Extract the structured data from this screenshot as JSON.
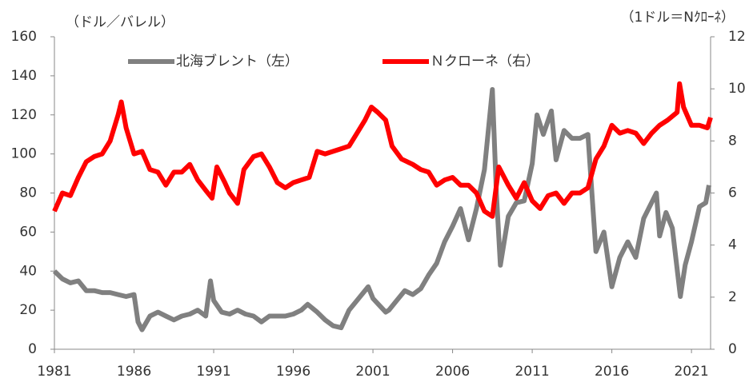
{
  "chart_data": {
    "type": "line",
    "y_label": "（ドル／バレル）",
    "y2_label": "（1ドル＝Nｸﾛｰﾈ）",
    "xlim": [
      1981,
      2022.2
    ],
    "xticks": [
      1981,
      1986,
      1991,
      1996,
      2001,
      2006,
      2011,
      2016,
      2021
    ],
    "ylim": [
      0,
      160
    ],
    "yticks": [
      0,
      20,
      40,
      60,
      80,
      100,
      120,
      140,
      160
    ],
    "y2lim": [
      0,
      12
    ],
    "y2ticks": [
      0,
      2,
      4,
      6,
      8,
      10,
      12
    ],
    "legend": "top",
    "series": [
      {
        "name": "北海ブレント（左）",
        "color": "#808080",
        "axis": "y",
        "x": [
          1981.0,
          1981.5,
          1982.0,
          1982.5,
          1983.0,
          1983.5,
          1984.0,
          1984.5,
          1985.0,
          1985.5,
          1986.0,
          1986.25,
          1986.5,
          1987.0,
          1987.5,
          1988.0,
          1988.5,
          1989.0,
          1989.5,
          1990.0,
          1990.5,
          1990.8,
          1991.0,
          1991.5,
          1992.0,
          1992.5,
          1993.0,
          1993.5,
          1994.0,
          1994.5,
          1995.0,
          1995.5,
          1996.0,
          1996.5,
          1996.9,
          1997.5,
          1998.0,
          1998.5,
          1999.0,
          1999.5,
          2000.0,
          2000.7,
          2001.0,
          2001.8,
          2002.0,
          2002.5,
          2003.0,
          2003.5,
          2004.0,
          2004.5,
          2005.0,
          2005.5,
          2006.0,
          2006.5,
          2007.0,
          2007.5,
          2008.0,
          2008.5,
          2008.75,
          2009.0,
          2009.5,
          2010.0,
          2010.5,
          2011.0,
          2011.3,
          2011.7,
          2012.2,
          2012.5,
          2013.0,
          2013.5,
          2014.0,
          2014.5,
          2015.0,
          2015.5,
          2016.0,
          2016.5,
          2017.0,
          2017.5,
          2018.0,
          2018.8,
          2019.0,
          2019.4,
          2019.8,
          2020.3,
          2020.6,
          2021.0,
          2021.5,
          2021.9,
          2022.1
        ],
        "values": [
          40,
          36,
          34,
          35,
          30,
          30,
          29,
          29,
          28,
          27,
          28,
          14,
          10,
          17,
          19,
          17,
          15,
          17,
          18,
          20,
          17,
          35,
          25,
          19,
          18,
          20,
          18,
          17,
          14,
          17,
          17,
          17,
          18,
          20,
          23,
          19,
          15,
          12,
          11,
          20,
          25,
          32,
          26,
          19,
          20,
          25,
          30,
          28,
          31,
          38,
          44,
          55,
          63,
          72,
          56,
          72,
          92,
          133,
          80,
          43,
          68,
          75,
          76,
          95,
          120,
          110,
          122,
          97,
          112,
          108,
          108,
          110,
          50,
          60,
          32,
          47,
          55,
          47,
          67,
          80,
          58,
          70,
          62,
          27,
          43,
          55,
          73,
          75,
          84
        ]
      },
      {
        "name": "Ｎクローネ（右）",
        "color": "#ff0000",
        "axis": "y2",
        "x": [
          1981.0,
          1981.5,
          1982.0,
          1982.5,
          1983.0,
          1983.5,
          1984.0,
          1984.5,
          1985.0,
          1985.2,
          1985.5,
          1986.0,
          1986.5,
          1987.0,
          1987.5,
          1988.0,
          1988.5,
          1989.0,
          1989.5,
          1990.0,
          1990.5,
          1990.9,
          1991.2,
          1991.7,
          1992.0,
          1992.5,
          1992.9,
          1993.5,
          1994.0,
          1994.5,
          1995.0,
          1995.5,
          1996.0,
          1996.5,
          1997.0,
          1997.5,
          1998.0,
          1998.5,
          1999.0,
          1999.5,
          2000.0,
          2000.5,
          2000.9,
          2001.3,
          2001.8,
          2002.2,
          2002.8,
          2003.5,
          2004.0,
          2004.5,
          2005.0,
          2005.5,
          2006.0,
          2006.5,
          2007.0,
          2007.5,
          2008.0,
          2008.5,
          2008.9,
          2009.5,
          2010.0,
          2010.5,
          2011.0,
          2011.5,
          2012.0,
          2012.5,
          2013.0,
          2013.5,
          2014.0,
          2014.5,
          2015.0,
          2015.5,
          2016.0,
          2016.5,
          2017.0,
          2017.5,
          2018.0,
          2018.5,
          2019.0,
          2019.5,
          2020.1,
          2020.25,
          2020.5,
          2021.0,
          2021.5,
          2022.0,
          2022.2
        ],
        "values": [
          5.3,
          6.0,
          5.9,
          6.6,
          7.2,
          7.4,
          7.5,
          8.0,
          9.0,
          9.5,
          8.5,
          7.5,
          7.6,
          6.9,
          6.8,
          6.3,
          6.8,
          6.8,
          7.1,
          6.5,
          6.1,
          5.8,
          7.0,
          6.4,
          6.0,
          5.6,
          6.9,
          7.4,
          7.5,
          7.0,
          6.4,
          6.2,
          6.4,
          6.5,
          6.6,
          7.6,
          7.5,
          7.6,
          7.7,
          7.8,
          8.3,
          8.8,
          9.3,
          9.1,
          8.8,
          7.8,
          7.3,
          7.1,
          6.9,
          6.8,
          6.3,
          6.5,
          6.6,
          6.3,
          6.3,
          6.0,
          5.3,
          5.1,
          7.0,
          6.3,
          5.8,
          6.4,
          5.7,
          5.4,
          5.9,
          6.0,
          5.6,
          6.0,
          6.0,
          6.2,
          7.3,
          7.8,
          8.6,
          8.3,
          8.4,
          8.3,
          7.9,
          8.3,
          8.6,
          8.8,
          9.1,
          10.2,
          9.3,
          8.6,
          8.6,
          8.5,
          8.9
        ]
      }
    ]
  }
}
